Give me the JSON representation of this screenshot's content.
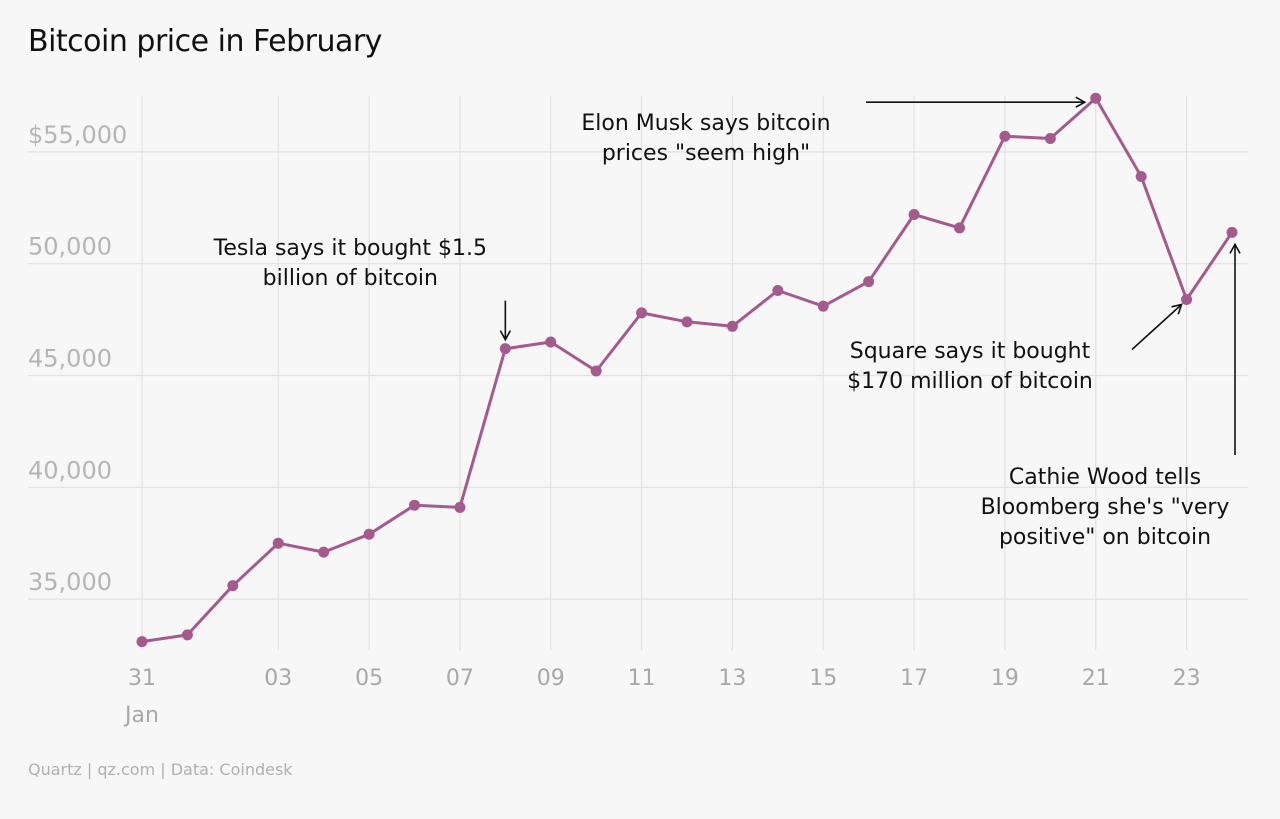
{
  "page": {
    "title": "Bitcoin price in February",
    "footer": "Quartz | qz.com | Data: Coindesk"
  },
  "colors": {
    "line": "#a45a8c",
    "grid": "#e2e2e2",
    "tick_text": "#b0b0b0",
    "background": "#f7f7f7"
  },
  "chart_data": {
    "type": "line",
    "title": "Bitcoin price in February",
    "xlabel": "",
    "ylabel": "",
    "x": [
      "2021-01-31",
      "2021-02-01",
      "2021-02-02",
      "2021-02-03",
      "2021-02-04",
      "2021-02-05",
      "2021-02-06",
      "2021-02-07",
      "2021-02-08",
      "2021-02-09",
      "2021-02-10",
      "2021-02-11",
      "2021-02-12",
      "2021-02-13",
      "2021-02-14",
      "2021-02-15",
      "2021-02-16",
      "2021-02-17",
      "2021-02-18",
      "2021-02-19",
      "2021-02-20",
      "2021-02-21",
      "2021-02-22",
      "2021-02-23",
      "2021-02-24"
    ],
    "series": [
      {
        "values": [
          33100,
          33400,
          35600,
          37500,
          37100,
          37900,
          39200,
          39100,
          46200,
          46500,
          45200,
          47800,
          47400,
          47200,
          48800,
          48100,
          49200,
          52200,
          51600,
          55700,
          55600,
          57400,
          53900,
          48400,
          51400
        ]
      }
    ],
    "xlim": [
      "2021-01-31",
      "2021-02-24"
    ],
    "ylim": [
      32500,
      57500
    ],
    "y_ticks": [
      35000,
      40000,
      45000,
      50000,
      55000
    ],
    "y_tick_labels": [
      "35,000",
      "40,000",
      "45,000",
      "50,000",
      "$55,000"
    ],
    "x_ticks": [
      "2021-01-31",
      "2021-02-03",
      "2021-02-05",
      "2021-02-07",
      "2021-02-09",
      "2021-02-11",
      "2021-02-13",
      "2021-02-15",
      "2021-02-17",
      "2021-02-19",
      "2021-02-21",
      "2021-02-23"
    ],
    "x_tick_labels": [
      "31",
      "03",
      "05",
      "07",
      "09",
      "11",
      "13",
      "15",
      "17",
      "19",
      "21",
      "23"
    ],
    "x_sub_label": "Jan",
    "grid": true,
    "legend": "none",
    "annotations": [
      {
        "x": "2021-02-08",
        "lines": [
          "Tesla says it bought $1.5",
          "billion of bitcoin"
        ]
      },
      {
        "x": "2021-02-21",
        "lines": [
          "Elon Musk says bitcoin",
          "prices \"seem high\""
        ]
      },
      {
        "x": "2021-02-23",
        "lines": [
          "Square says it bought",
          "$170 million of bitcoin"
        ]
      },
      {
        "x": "2021-02-24",
        "lines": [
          "Cathie Wood tells",
          "Bloomberg she's \"very",
          "positive\" on bitcoin"
        ]
      }
    ]
  }
}
